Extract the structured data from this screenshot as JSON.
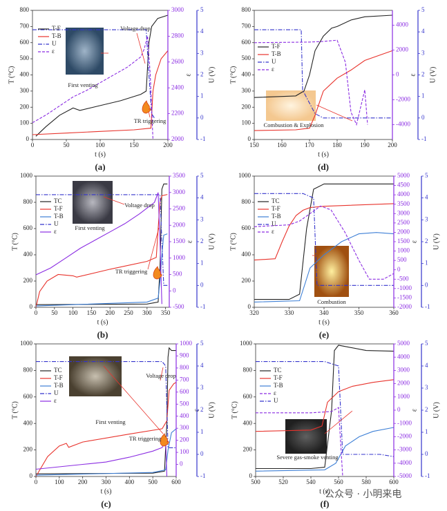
{
  "chart_data": [
    {
      "type": "line",
      "label": "(a)",
      "xlabel": "t (s)",
      "ylabel": "T (°C)",
      "y2label": "ε",
      "y3label": "U (V)",
      "xlim": [
        0,
        200
      ],
      "xticks": [
        0,
        50,
        100,
        150,
        200
      ],
      "ylim": [
        0,
        800
      ],
      "yticks": [
        0,
        100,
        200,
        300,
        400,
        500,
        600,
        700,
        800
      ],
      "y2lim": [
        2000,
        3000
      ],
      "y2ticks": [
        2000,
        2200,
        2400,
        2600,
        2800,
        3000
      ],
      "y3lim": [
        -1,
        5
      ],
      "y3ticks": [
        -1,
        0,
        1,
        2,
        3,
        4,
        5
      ],
      "annotations": [
        "Voltage drop",
        "First venting",
        "TR triggering"
      ],
      "series": [
        {
          "name": "T-F",
          "color": "#222222",
          "axis": "y",
          "dash": "solid",
          "x": [
            5,
            20,
            40,
            60,
            70,
            100,
            130,
            160,
            168,
            172,
            176,
            185,
            200
          ],
          "values": [
            20,
            80,
            150,
            195,
            180,
            210,
            240,
            280,
            300,
            600,
            700,
            750,
            770
          ]
        },
        {
          "name": "T-B",
          "color": "#e8322b",
          "axis": "y",
          "dash": "solid",
          "x": [
            0,
            50,
            100,
            150,
            175,
            178,
            182,
            190,
            200
          ],
          "values": [
            30,
            40,
            50,
            60,
            70,
            300,
            400,
            500,
            550
          ]
        },
        {
          "name": "U",
          "color": "#3333cc",
          "axis": "y3",
          "dash": "dashdot",
          "x": [
            0,
            168,
            172,
            176,
            180
          ],
          "values": [
            4.1,
            4.1,
            2,
            0.2,
            0
          ]
        },
        {
          "name": "ε",
          "color": "#8a2be2",
          "axis": "y2",
          "dash": "dash",
          "x": [
            0,
            20,
            40,
            60,
            80,
            100,
            120,
            140,
            160,
            165,
            170,
            174,
            178
          ],
          "values": [
            2130,
            2190,
            2260,
            2330,
            2380,
            2440,
            2500,
            2560,
            2640,
            2700,
            2800,
            2500,
            2000
          ]
        }
      ]
    },
    {
      "type": "line",
      "label": "(b)",
      "xlabel": "t (s)",
      "ylabel": "T (°C)",
      "y2label": "ε",
      "y3label": "U (V)",
      "xlim": [
        0,
        360
      ],
      "xticks": [
        0,
        50,
        100,
        150,
        200,
        250,
        300,
        350
      ],
      "ylim": [
        0,
        1000
      ],
      "yticks": [
        0,
        200,
        400,
        600,
        800,
        1000
      ],
      "y2lim": [
        -500,
        3500
      ],
      "y2ticks": [
        -500,
        0,
        500,
        1000,
        1500,
        2000,
        2500,
        3000,
        3500
      ],
      "y3lim": [
        -1,
        5
      ],
      "y3ticks": [
        -1,
        0,
        1,
        2,
        3,
        4,
        5
      ],
      "annotations": [
        "Voltage drop",
        "First venting",
        "TR triggering"
      ],
      "series": [
        {
          "name": "TC",
          "color": "#222222",
          "axis": "y",
          "dash": "solid",
          "x": [
            0,
            300,
            330,
            335,
            340,
            345,
            355
          ],
          "values": [
            20,
            25,
            40,
            300,
            900,
            940,
            940
          ]
        },
        {
          "name": "T-F",
          "color": "#e8322b",
          "axis": "y",
          "dash": "solid",
          "x": [
            0,
            10,
            30,
            60,
            100,
            110,
            200,
            300,
            325,
            330,
            335,
            340,
            355
          ],
          "values": [
            0,
            120,
            200,
            250,
            240,
            230,
            290,
            350,
            380,
            600,
            800,
            850,
            860
          ]
        },
        {
          "name": "T-B",
          "color": "#3d7fd6",
          "axis": "y",
          "dash": "solid",
          "x": [
            0,
            300,
            330,
            335,
            340,
            345,
            355
          ],
          "values": [
            10,
            40,
            70,
            200,
            400,
            550,
            560
          ]
        },
        {
          "name": "U",
          "color": "#3333cc",
          "axis": "y3",
          "dash": "dashdot",
          "x": [
            0,
            335,
            340,
            345,
            355
          ],
          "values": [
            4.15,
            4.15,
            2,
            0,
            0
          ]
        },
        {
          "name": "ε",
          "color": "#8a2be2",
          "axis": "y2",
          "dash": "solid",
          "x": [
            0,
            40,
            80,
            120,
            160,
            200,
            240,
            280,
            320,
            330,
            335,
            340
          ],
          "values": [
            490,
            700,
            1000,
            1300,
            1550,
            1800,
            2050,
            2350,
            2700,
            3000,
            1500,
            -400
          ]
        }
      ]
    },
    {
      "type": "line",
      "label": "(c)",
      "xlabel": "t (s)",
      "ylabel": "T (°C)",
      "y2label": "ε",
      "y3label": "U (V)",
      "xlim": [
        0,
        600
      ],
      "xticks": [
        0,
        100,
        200,
        300,
        400,
        500,
        600
      ],
      "ylim": [
        0,
        1000
      ],
      "yticks": [
        0,
        200,
        400,
        600,
        800,
        1000
      ],
      "y2lim": [
        -100,
        1000
      ],
      "y2ticks": [
        0,
        100,
        200,
        300,
        400,
        500,
        600,
        700,
        800,
        900,
        1000
      ],
      "y3lim": [
        -1,
        5
      ],
      "y3ticks": [
        -1,
        0,
        1,
        2,
        3,
        4,
        5
      ],
      "annotations": [
        "Voltage drop",
        "First venting",
        "TR triggering"
      ],
      "series": [
        {
          "name": "TC",
          "color": "#222222",
          "axis": "y",
          "dash": "solid",
          "x": [
            0,
            500,
            550,
            560,
            565,
            570,
            580,
            600
          ],
          "values": [
            20,
            25,
            40,
            400,
            900,
            970,
            950,
            950
          ]
        },
        {
          "name": "T-F",
          "color": "#e8322b",
          "axis": "y",
          "dash": "solid",
          "x": [
            0,
            50,
            100,
            130,
            140,
            200,
            400,
            540,
            560,
            570,
            590,
            600
          ],
          "values": [
            0,
            150,
            230,
            250,
            220,
            260,
            320,
            360,
            420,
            650,
            700,
            710
          ]
        },
        {
          "name": "T-B",
          "color": "#3d7fd6",
          "axis": "y",
          "dash": "solid",
          "x": [
            0,
            500,
            555,
            565,
            580,
            600
          ],
          "values": [
            10,
            30,
            50,
            200,
            330,
            360
          ]
        },
        {
          "name": "U",
          "color": "#3333cc",
          "axis": "y3",
          "dash": "dashdot",
          "x": [
            0,
            540,
            555,
            565,
            600
          ],
          "values": [
            4.2,
            4.2,
            4,
            0.3,
            0.3
          ]
        },
        {
          "name": "ε",
          "color": "#8a2be2",
          "axis": "y2",
          "dash": "solid",
          "x": [
            0,
            100,
            200,
            300,
            400,
            500,
            540,
            555,
            560
          ],
          "values": [
            -40,
            -20,
            0,
            20,
            60,
            110,
            140,
            200,
            -100
          ]
        }
      ]
    },
    {
      "type": "line",
      "label": "(d)",
      "xlabel": "t (s)",
      "ylabel": "T (°C)",
      "y2label": "ε",
      "y3label": "U (V)",
      "xlim": [
        150,
        200
      ],
      "xticks": [
        150,
        160,
        170,
        180,
        190,
        200
      ],
      "ylim": [
        0,
        800
      ],
      "yticks": [
        0,
        100,
        200,
        300,
        400,
        500,
        600,
        700,
        800
      ],
      "y2lim": [
        -5200,
        5200
      ],
      "y2ticks": [
        -4000,
        -2000,
        0,
        2000,
        4000
      ],
      "y3lim": [
        -1,
        5
      ],
      "y3ticks": [
        -1,
        0,
        1,
        2,
        3,
        4,
        5
      ],
      "annotations": [
        "Combustion & Explosion"
      ],
      "series": [
        {
          "name": "T-F",
          "color": "#222222",
          "axis": "y",
          "dash": "solid",
          "x": [
            150,
            165,
            168,
            170,
            172,
            175,
            178,
            180,
            185,
            190,
            200
          ],
          "values": [
            260,
            270,
            300,
            400,
            550,
            640,
            690,
            700,
            740,
            760,
            770
          ]
        },
        {
          "name": "T-B",
          "color": "#e8322b",
          "axis": "y",
          "dash": "solid",
          "x": [
            150,
            165,
            170,
            172,
            175,
            180,
            185,
            190,
            200
          ],
          "values": [
            55,
            60,
            70,
            150,
            300,
            380,
            430,
            490,
            550
          ]
        },
        {
          "name": "U",
          "color": "#3333cc",
          "axis": "y3",
          "dash": "dashdot",
          "x": [
            150,
            167,
            167.5,
            172,
            175,
            200
          ],
          "values": [
            4.1,
            4.1,
            1.3,
            0.2,
            0,
            0
          ]
        },
        {
          "name": "ε",
          "color": "#8a2be2",
          "axis": "y2",
          "dash": "dash",
          "x": [
            150,
            170,
            175,
            180,
            183,
            185,
            187,
            190,
            191
          ],
          "values": [
            2600,
            2650,
            2700,
            2800,
            1000,
            -3000,
            -4000,
            -1200,
            -4000
          ]
        }
      ]
    },
    {
      "type": "line",
      "label": "(e)",
      "xlabel": "t (s)",
      "ylabel": "T (°C)",
      "y2label": "ε",
      "y3label": "U (V)",
      "xlim": [
        320,
        360
      ],
      "xticks": [
        320,
        330,
        340,
        350,
        360
      ],
      "ylim": [
        0,
        1000
      ],
      "yticks": [
        0,
        200,
        400,
        600,
        800,
        1000
      ],
      "y2lim": [
        -2000,
        5000
      ],
      "y2ticks": [
        -2000,
        -1500,
        -1000,
        -500,
        0,
        500,
        1000,
        1500,
        2000,
        2500,
        3000,
        3500,
        4000,
        4500,
        5000
      ],
      "y3lim": [
        -1,
        5
      ],
      "y3ticks": [
        -1,
        0,
        1,
        2,
        3,
        4,
        5
      ],
      "annotations": [
        "Combustion"
      ],
      "series": [
        {
          "name": "TC",
          "color": "#222222",
          "axis": "y",
          "dash": "solid",
          "x": [
            320,
            330,
            333,
            335,
            337,
            340,
            360
          ],
          "values": [
            60,
            60,
            100,
            600,
            900,
            940,
            940
          ]
        },
        {
          "name": "T-F",
          "color": "#e8322b",
          "axis": "y",
          "dash": "solid",
          "x": [
            320,
            326,
            328,
            330,
            332,
            334,
            336,
            340,
            360
          ],
          "values": [
            360,
            370,
            500,
            620,
            700,
            740,
            760,
            770,
            790
          ]
        },
        {
          "name": "T-B",
          "color": "#3d7fd6",
          "axis": "y",
          "dash": "solid",
          "x": [
            320,
            333,
            336,
            340,
            345,
            350,
            355,
            360
          ],
          "values": [
            40,
            50,
            300,
            400,
            500,
            560,
            570,
            560
          ]
        },
        {
          "name": "U",
          "color": "#3333cc",
          "axis": "y3",
          "dash": "dashdot",
          "x": [
            320,
            334,
            337,
            338,
            360
          ],
          "values": [
            4.2,
            4.2,
            4,
            0,
            0
          ]
        },
        {
          "name": "ε",
          "color": "#8a2be2",
          "axis": "y2",
          "dash": "dash",
          "x": [
            320,
            330,
            333,
            336,
            339,
            342,
            346,
            350,
            353,
            357,
            360
          ],
          "values": [
            2300,
            2400,
            2600,
            3000,
            3400,
            3200,
            2000,
            500,
            -500,
            -500,
            -200
          ]
        }
      ]
    },
    {
      "type": "line",
      "label": "(f)",
      "xlabel": "t (s)",
      "ylabel": "T (°C)",
      "y2label": "ε",
      "y3label": "U (V)",
      "xlim": [
        500,
        600
      ],
      "xticks": [
        500,
        520,
        540,
        560,
        580,
        600
      ],
      "ylim": [
        0,
        1000
      ],
      "yticks": [
        0,
        200,
        400,
        600,
        800,
        1000
      ],
      "y2lim": [
        -5000,
        5000
      ],
      "y2ticks": [
        -5000,
        -4000,
        -3000,
        -2000,
        -1000,
        0,
        1000,
        2000,
        3000,
        4000,
        5000
      ],
      "y3lim": [
        -1,
        5
      ],
      "y3ticks": [
        -1,
        0,
        1,
        2,
        3,
        4,
        5
      ],
      "annotations": [
        "Severe gas-smoke venting"
      ],
      "series": [
        {
          "name": "TC",
          "color": "#222222",
          "axis": "y",
          "dash": "solid",
          "x": [
            500,
            540,
            550,
            555,
            557,
            560,
            580,
            600
          ],
          "values": [
            60,
            60,
            70,
            500,
            950,
            990,
            950,
            945
          ]
        },
        {
          "name": "T-F",
          "color": "#e8322b",
          "axis": "y",
          "dash": "solid",
          "x": [
            500,
            540,
            548,
            552,
            560,
            570,
            585,
            600
          ],
          "values": [
            340,
            350,
            380,
            560,
            640,
            680,
            710,
            730
          ]
        },
        {
          "name": "T-B",
          "color": "#3d7fd6",
          "axis": "y",
          "dash": "solid",
          "x": [
            500,
            550,
            558,
            565,
            575,
            585,
            600
          ],
          "values": [
            40,
            50,
            100,
            230,
            300,
            340,
            370
          ]
        },
        {
          "name": "ε",
          "color": "#8a2be2",
          "axis": "y2",
          "dash": "dash",
          "x": [
            500,
            540,
            555,
            560,
            563
          ],
          "values": [
            -200,
            -200,
            -100,
            200,
            -5000
          ]
        },
        {
          "name": "U",
          "color": "#3333cc",
          "axis": "y3",
          "dash": "dashdot",
          "x": [
            500,
            550,
            560,
            563,
            590,
            600
          ],
          "values": [
            4.2,
            4.2,
            4,
            0,
            0,
            -0.1
          ]
        }
      ]
    }
  ],
  "watermark": "公众号 · 小明来电"
}
